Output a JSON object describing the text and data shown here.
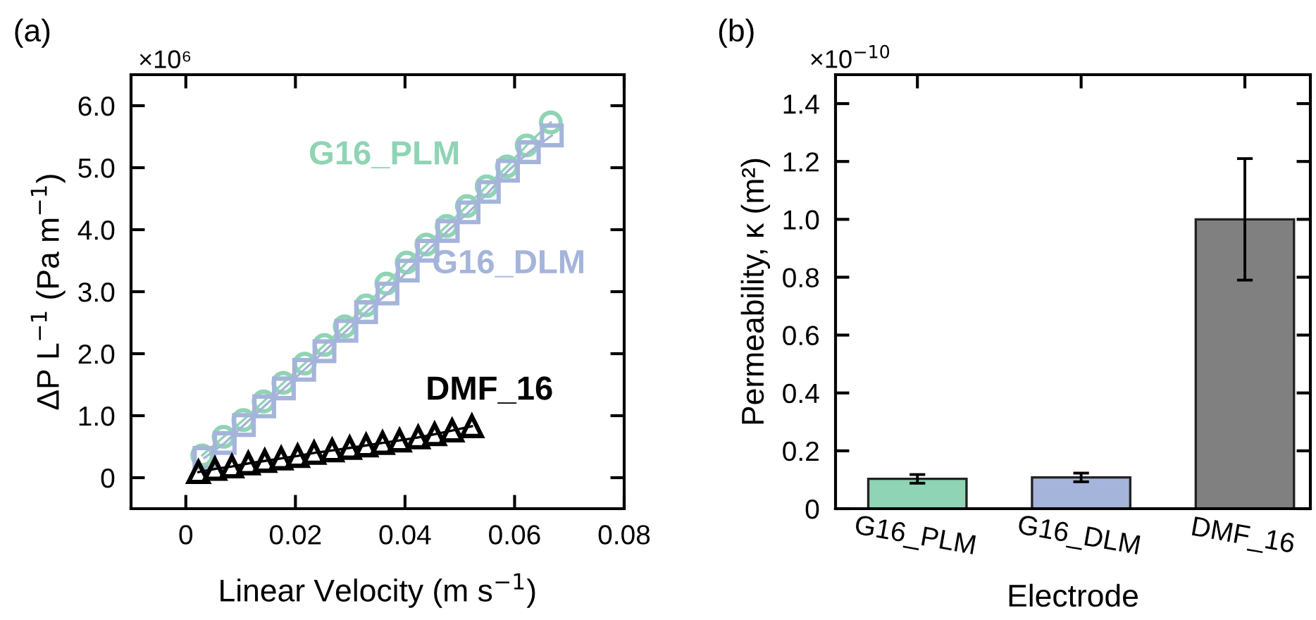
{
  "chart_data": [
    {
      "type": "scatter",
      "xlabel": "Linear Velocity (m s$^{−1}$)",
      "ylabel": "ΔP L$^{−1}$ (Pa m$^{−1}$)",
      "annotations": [
        "(a)",
        "×10⁶"
      ],
      "xlim": [
        -0.01,
        0.08
      ],
      "xticks": [
        {
          "value": 0,
          "label": "0"
        },
        0.02,
        0.04,
        0.06,
        0.08
      ],
      "ylim": [
        -0.5,
        6.5
      ],
      "yticks": [
        {
          "value": 0,
          "label": "0"
        },
        {
          "value": 1,
          "label": "1.0"
        },
        {
          "value": 2,
          "label": "2.0"
        },
        {
          "value": 3,
          "label": "3.0"
        },
        {
          "value": 4,
          "label": "4.0"
        },
        {
          "value": 5,
          "label": "5.0"
        },
        {
          "value": 6,
          "label": "6.0"
        }
      ],
      "grid": false,
      "legend": false,
      "series": [
        {
          "name": "G16_PLM",
          "type": "line",
          "color": "#8fd4b4",
          "marker": "circle",
          "x": [
            0.003,
            0.0069,
            0.0105,
            0.0142,
            0.0178,
            0.0217,
            0.0253,
            0.029,
            0.0329,
            0.0366,
            0.0403,
            0.0439,
            0.0476,
            0.0513,
            0.0549,
            0.0586,
            0.0622,
            0.0666
          ],
          "values": [
            0.36,
            0.66,
            0.93,
            1.23,
            1.53,
            1.84,
            2.14,
            2.44,
            2.78,
            3.13,
            3.47,
            3.76,
            4.06,
            4.38,
            4.7,
            5.02,
            5.36,
            5.73
          ]
        },
        {
          "name": "G16_DLM",
          "type": "line",
          "color": "#a5b4da",
          "marker": "square",
          "x": [
            0.0034,
            0.0071,
            0.0106,
            0.0143,
            0.0179,
            0.0216,
            0.0253,
            0.0293,
            0.0329,
            0.0368,
            0.0405,
            0.0441,
            0.0478,
            0.0516,
            0.0553,
            0.0588,
            0.0626,
            0.0668
          ],
          "values": [
            0.32,
            0.56,
            0.85,
            1.15,
            1.44,
            1.74,
            2.04,
            2.37,
            2.67,
            2.97,
            3.34,
            3.66,
            3.98,
            4.28,
            4.61,
            4.95,
            5.25,
            5.52
          ]
        },
        {
          "name": "DMF_16",
          "type": "line",
          "color": "#000000",
          "marker": "triangle",
          "x": [
            0.0023,
            0.0053,
            0.0084,
            0.0114,
            0.0144,
            0.0174,
            0.0204,
            0.0234,
            0.0267,
            0.0299,
            0.0329,
            0.0359,
            0.039,
            0.0424,
            0.0454,
            0.0486,
            0.0522
          ],
          "values": [
            0.09,
            0.14,
            0.18,
            0.23,
            0.27,
            0.31,
            0.35,
            0.4,
            0.44,
            0.48,
            0.52,
            0.56,
            0.6,
            0.65,
            0.7,
            0.76,
            0.83
          ]
        }
      ]
    },
    {
      "type": "bar",
      "xlabel": "Electrode",
      "ylabel": "Permeability, κ (m²)",
      "annotations": [
        "(b)",
        "×10$^{−10}$"
      ],
      "categories": [
        "G16_PLM",
        "G16_DLM",
        "DMF_16"
      ],
      "values": [
        0.103,
        0.108,
        1.0
      ],
      "errors": [
        0.015,
        0.015,
        0.21
      ],
      "colors": [
        "#8fd4b4",
        "#a5b4da",
        "#808080"
      ],
      "ylim": [
        0,
        1.5
      ],
      "yticks": [
        {
          "value": 0,
          "label": "0"
        },
        0.2,
        0.4,
        0.6,
        0.8,
        {
          "value": 1.0,
          "label": "1.0"
        },
        1.2,
        1.4
      ],
      "grid": false,
      "legend": false
    }
  ]
}
